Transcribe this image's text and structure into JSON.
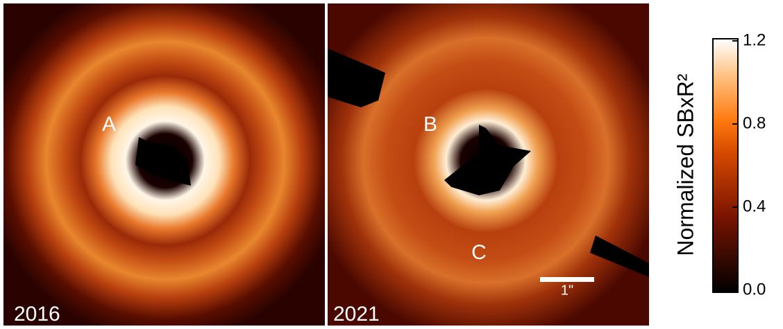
{
  "panels": [
    {
      "label": "2016",
      "annotations": [
        "A"
      ]
    },
    {
      "label": "2021",
      "annotations": [
        "B",
        "C"
      ],
      "scale_bar": "1\""
    }
  ],
  "colorbar": {
    "label": "Normalized SBxR²",
    "lim": [
      0,
      1.2
    ],
    "ticks": [
      {
        "value": 0,
        "label": "0.0"
      },
      0.4,
      0.8,
      {
        "value": 1.2,
        "label": "1.2"
      }
    ]
  }
}
